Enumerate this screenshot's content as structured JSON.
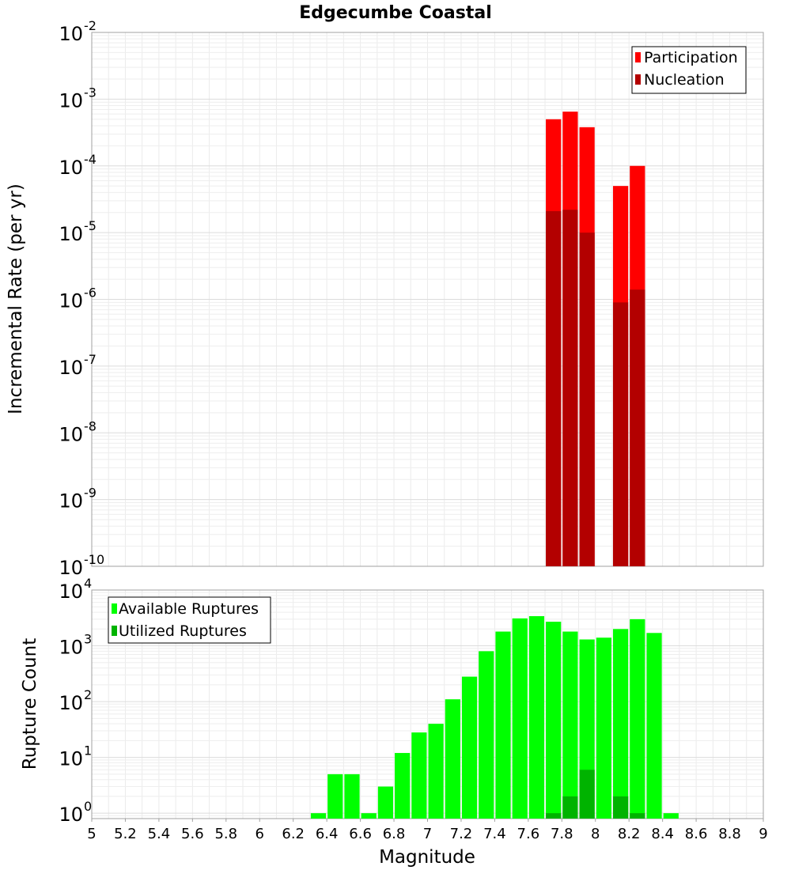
{
  "chart_data": [
    {
      "type": "bar",
      "title": "Edgecumbe Coastal",
      "xlabel": "",
      "ylabel": "Incremental Rate (per yr)",
      "yscale": "log",
      "ylim": [
        1e-10,
        0.01
      ],
      "xlim": [
        5,
        9
      ],
      "bar_width": 0.1,
      "grid": true,
      "legend_position": "top-right",
      "y_ticks": [
        {
          "base": "10",
          "exp": "-10",
          "value": 1e-10
        },
        {
          "base": "10",
          "exp": "-9",
          "value": 1e-09
        },
        {
          "base": "10",
          "exp": "-8",
          "value": 1e-08
        },
        {
          "base": "10",
          "exp": "-7",
          "value": 1e-07
        },
        {
          "base": "10",
          "exp": "-6",
          "value": 1e-06
        },
        {
          "base": "10",
          "exp": "-5",
          "value": 1e-05
        },
        {
          "base": "10",
          "exp": "-4",
          "value": 0.0001
        },
        {
          "base": "10",
          "exp": "-3",
          "value": 0.001
        },
        {
          "base": "10",
          "exp": "-2",
          "value": 0.01
        }
      ],
      "series": [
        {
          "name": "Participation",
          "color": "#ff0000",
          "x": [
            7.75,
            7.85,
            7.95,
            8.15,
            8.25
          ],
          "values": [
            0.0005,
            0.00065,
            0.00038,
            5e-05,
            0.0001
          ]
        },
        {
          "name": "Nucleation",
          "color": "#b30000",
          "x": [
            7.75,
            7.85,
            7.95,
            8.15,
            8.25
          ],
          "values": [
            2.1e-05,
            2.2e-05,
            1e-05,
            9e-07,
            1.4e-06
          ]
        }
      ]
    },
    {
      "type": "bar",
      "title": "",
      "xlabel": "Magnitude",
      "ylabel": "Rupture Count",
      "yscale": "log",
      "ylim": [
        0.8,
        10000
      ],
      "xlim": [
        5,
        9
      ],
      "bar_width": 0.1,
      "grid": true,
      "legend_position": "top-left",
      "x_ticks": [
        "5",
        "5.2",
        "5.4",
        "5.6",
        "5.8",
        "6",
        "6.2",
        "6.4",
        "6.6",
        "6.8",
        "7",
        "7.2",
        "7.4",
        "7.6",
        "7.8",
        "8",
        "8.2",
        "8.4",
        "8.6",
        "8.8",
        "9"
      ],
      "y_ticks": [
        {
          "base": "10",
          "exp": "0",
          "value": 1
        },
        {
          "base": "10",
          "exp": "1",
          "value": 10
        },
        {
          "base": "10",
          "exp": "2",
          "value": 100
        },
        {
          "base": "10",
          "exp": "3",
          "value": 1000
        },
        {
          "base": "10",
          "exp": "4",
          "value": 10000
        }
      ],
      "series": [
        {
          "name": "Available Ruptures",
          "color": "#00ff00",
          "x": [
            6.35,
            6.45,
            6.55,
            6.65,
            6.75,
            6.85,
            6.95,
            7.05,
            7.15,
            7.25,
            7.35,
            7.45,
            7.55,
            7.65,
            7.75,
            7.85,
            7.95,
            8.05,
            8.15,
            8.25,
            8.35,
            8.45
          ],
          "values": [
            1,
            5,
            5,
            1,
            3,
            12,
            28,
            40,
            110,
            280,
            800,
            1800,
            3100,
            3400,
            2700,
            1800,
            1300,
            1400,
            2000,
            3000,
            1700,
            1
          ]
        },
        {
          "name": "Utilized Ruptures",
          "color": "#00b300",
          "x": [
            7.75,
            7.85,
            7.95,
            8.15,
            8.25
          ],
          "values": [
            1,
            2,
            6,
            2,
            1
          ]
        }
      ]
    }
  ]
}
